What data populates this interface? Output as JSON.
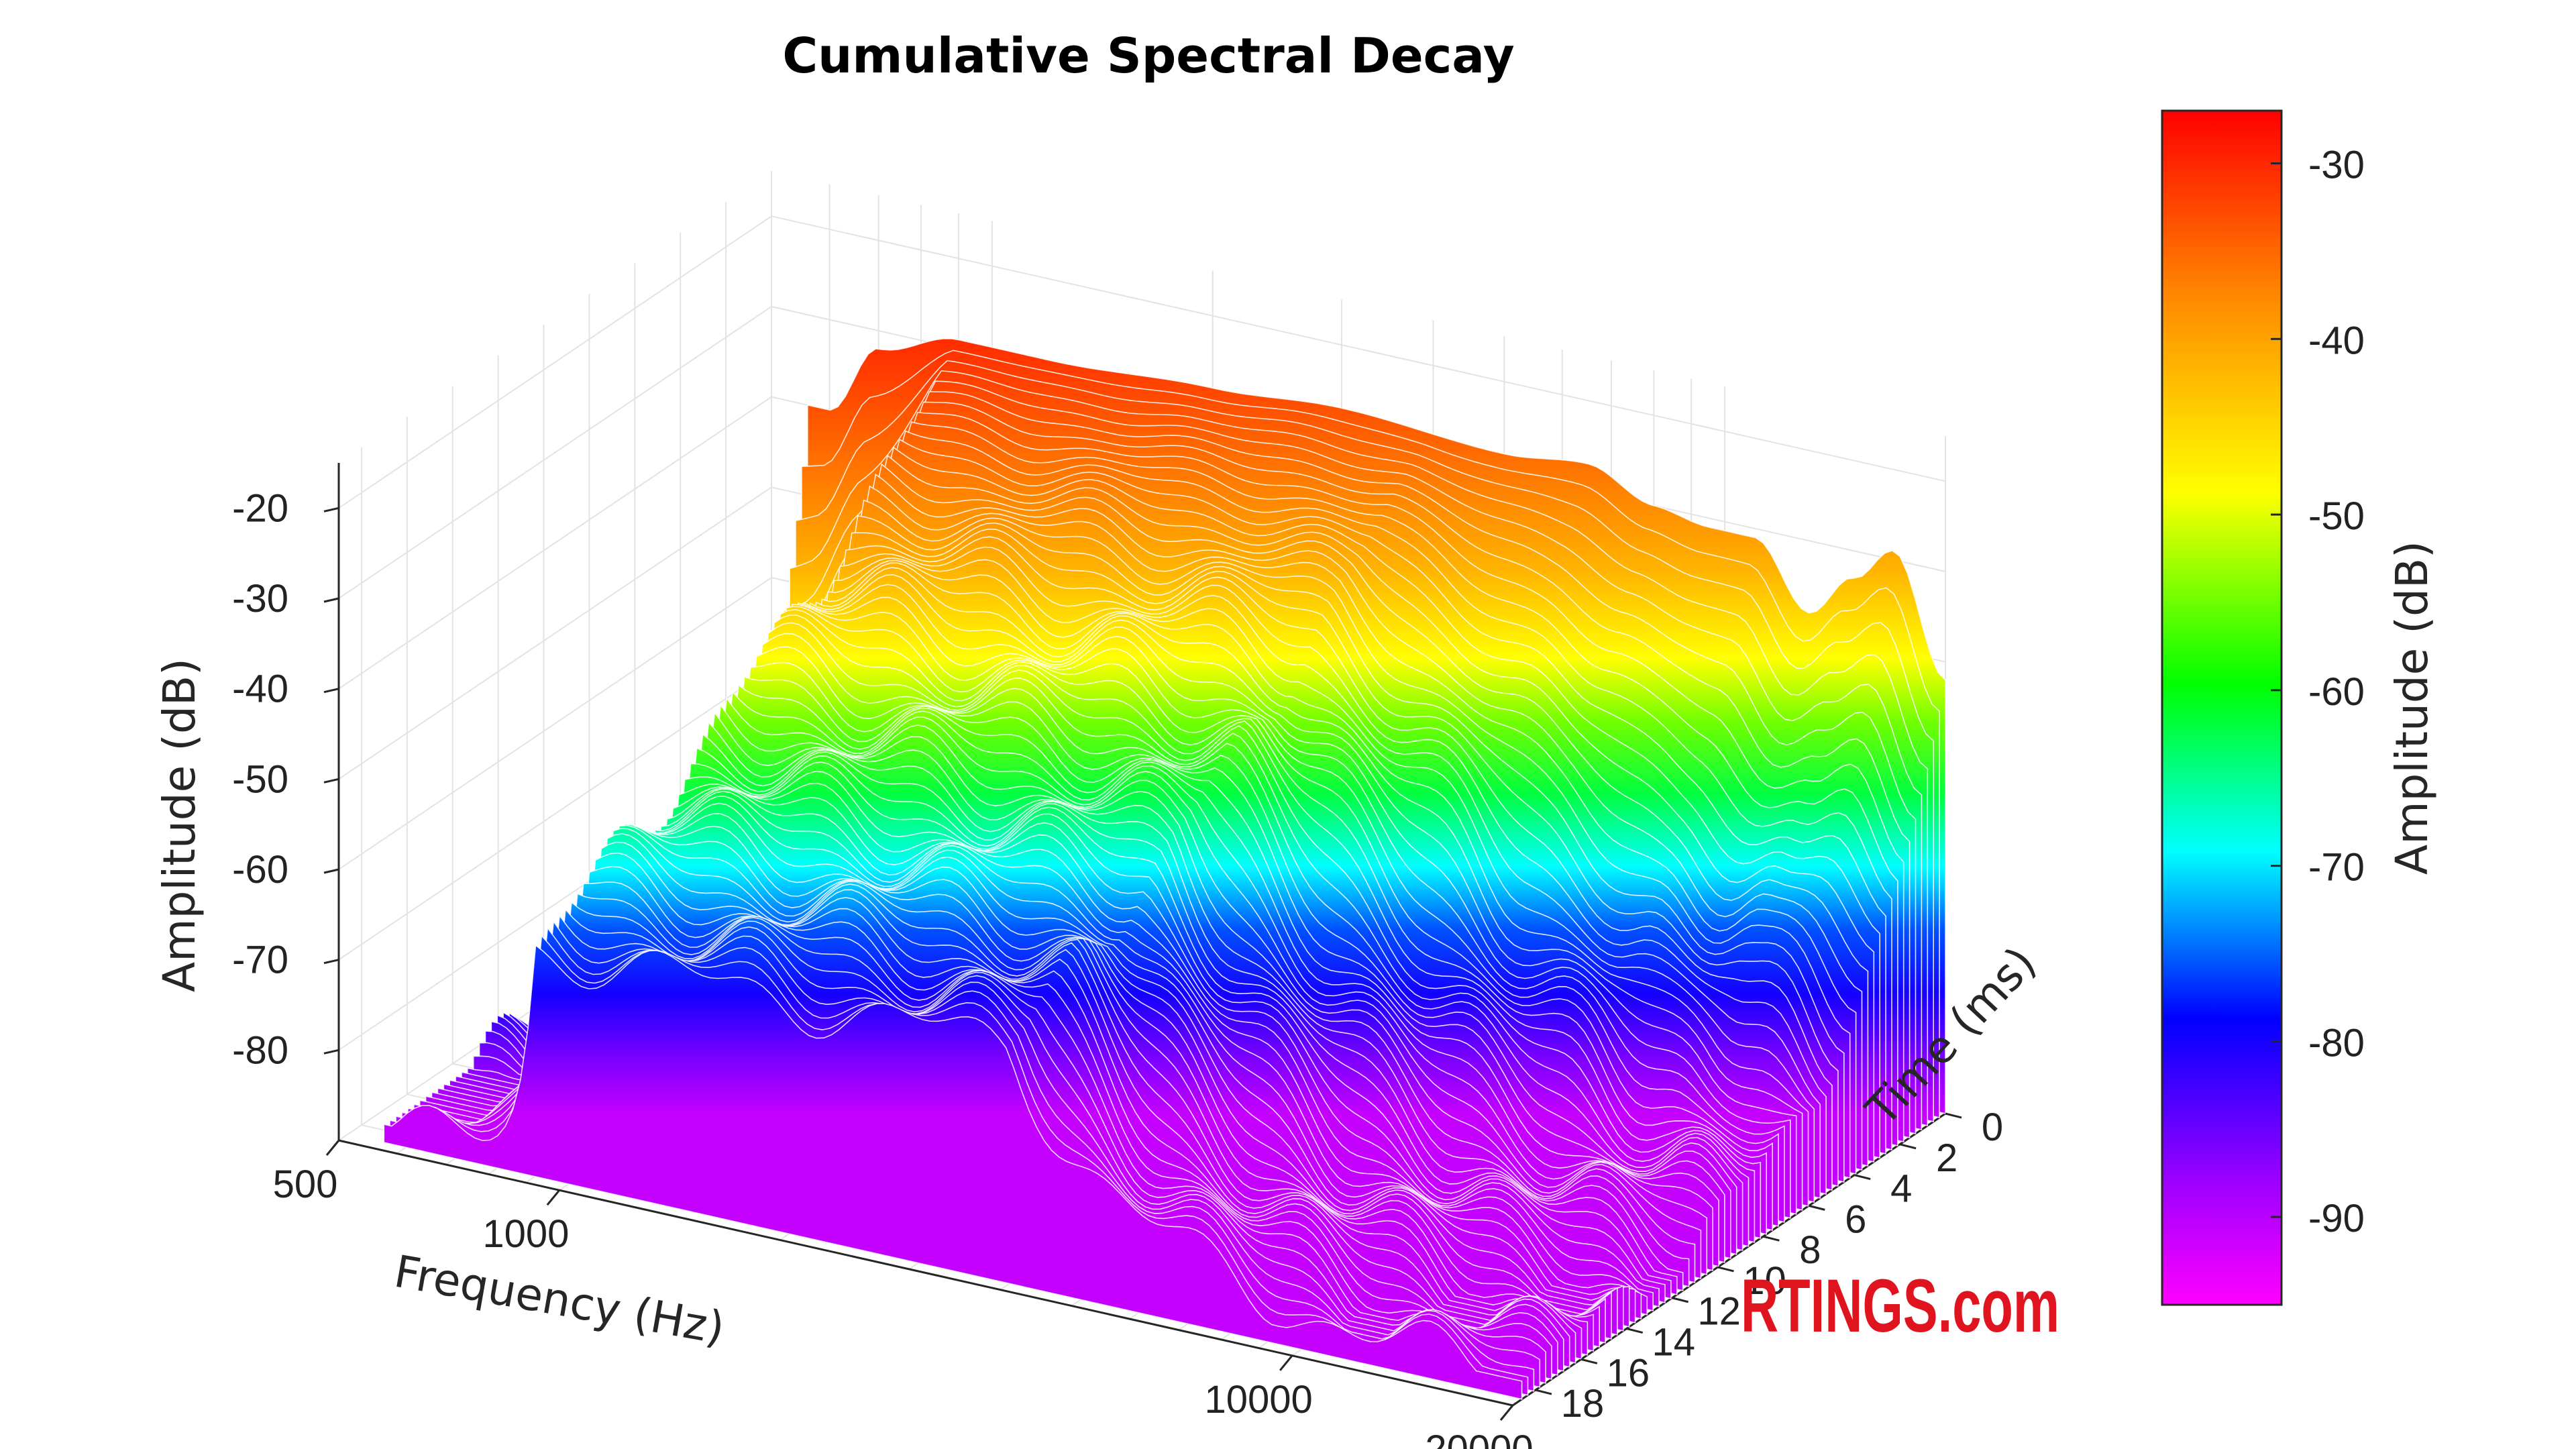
{
  "chart_data": {
    "type": "surface",
    "title": "Cumulative Spectral Decay",
    "x_axis": {
      "label": "Frequency (Hz)",
      "scale": "log",
      "range": [
        500,
        20000
      ],
      "ticks": [
        "500",
        "1000",
        "10000",
        "20000"
      ],
      "tick_values": [
        500,
        1000,
        10000,
        20000
      ]
    },
    "y_axis": {
      "label": "Time (ms)",
      "range": [
        0,
        19
      ],
      "ticks": [
        "0",
        "2",
        "4",
        "6",
        "8",
        "10",
        "12",
        "14",
        "16",
        "18"
      ],
      "tick_values": [
        0,
        2,
        4,
        6,
        8,
        10,
        12,
        14,
        16,
        18
      ]
    },
    "z_axis": {
      "label": "Amplitude (dB)",
      "range": [
        -90,
        -15
      ],
      "ticks": [
        "-20",
        "-30",
        "-40",
        "-50",
        "-60",
        "-70",
        "-80"
      ],
      "tick_values": [
        -20,
        -30,
        -40,
        -50,
        -60,
        -70,
        -80
      ]
    },
    "colorbar": {
      "label": "Amplitude (dB)",
      "range": [
        -95,
        -27
      ],
      "ticks": [
        "-30",
        "-40",
        "-50",
        "-60",
        "-70",
        "-80",
        "-90"
      ],
      "tick_values": [
        -30,
        -40,
        -50,
        -60,
        -70,
        -80,
        -90
      ],
      "colormap": [
        "#ff00ff",
        "#8c00ff",
        "#0000ff",
        "#00ffff",
        "#00ff00",
        "#ffff00",
        "#ff8c00",
        "#ff0000"
      ]
    },
    "surface": {
      "time_slices_ms": [
        0,
        18
      ],
      "initial_response": {
        "frequency_hz": [
          600,
          700,
          900,
          1200,
          2000,
          3000,
          5000,
          6500,
          8000,
          9500,
          11000,
          13000,
          15000,
          17000,
          20000
        ],
        "amplitude_db": [
          -40,
          -32,
          -29,
          -29,
          -28,
          -27,
          -28,
          -27,
          -30,
          -31,
          -31,
          -38,
          -33,
          -29,
          -42
        ]
      },
      "floor_db": -88
    },
    "grid": true,
    "logo": "RTINGS.com"
  }
}
